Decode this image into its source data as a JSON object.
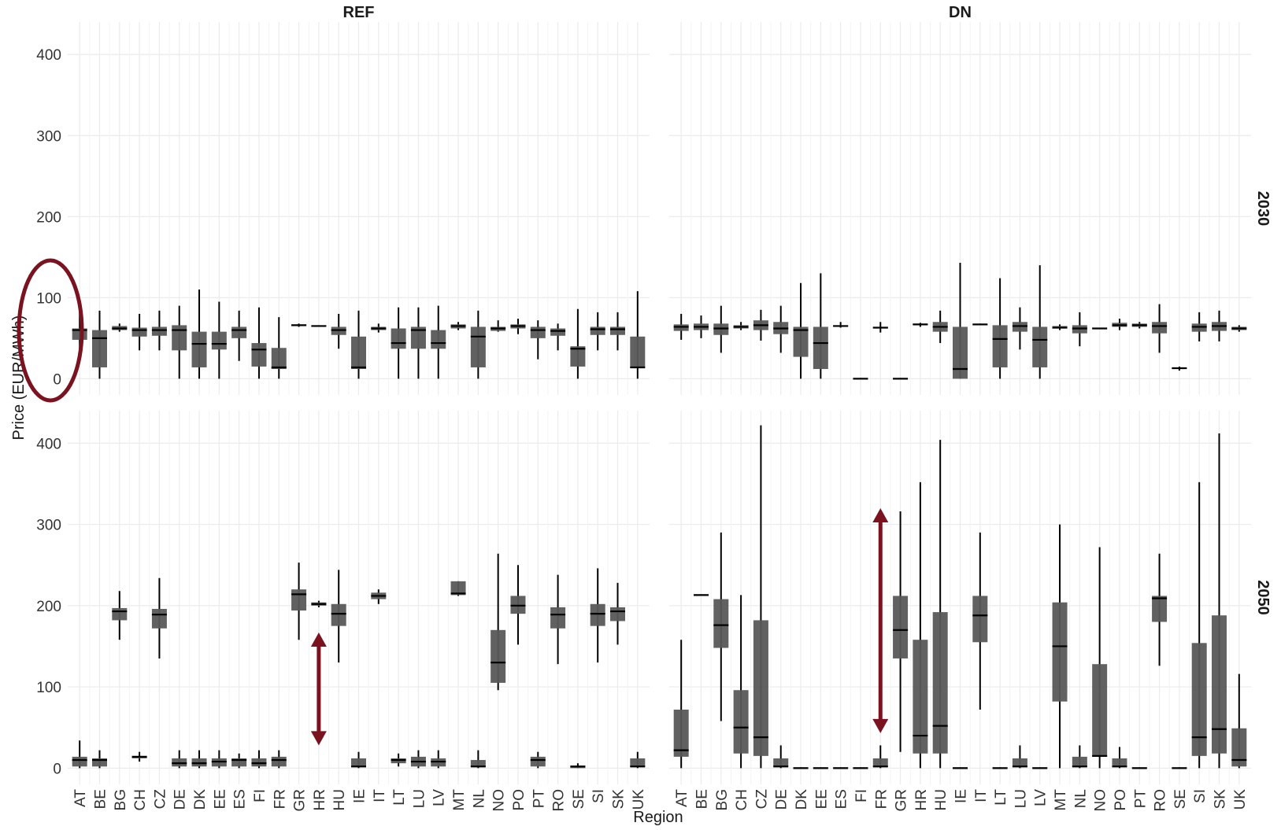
{
  "chart_data": {
    "type": "boxplot",
    "x_axis_label": "Region",
    "y_axis_label": "Price (EUR/MWh)",
    "columns": [
      "REF",
      "DN"
    ],
    "rows": [
      "2030",
      "2050"
    ],
    "y_range": [
      -20,
      440
    ],
    "y_ticks": [
      0,
      100,
      200,
      300,
      400
    ],
    "grid": true,
    "colors": {
      "box": "#595959",
      "line": "#000000",
      "grid": "#ebebeb",
      "annotation": "#7a1220"
    },
    "panels": [
      {
        "col": "REF",
        "row": "2030",
        "categories": [
          "AT",
          "BE",
          "BG",
          "CH",
          "CZ",
          "DE",
          "DK",
          "EE",
          "ES",
          "FI",
          "FR",
          "GR",
          "HR",
          "HU",
          "IE",
          "IT",
          "LT",
          "LU",
          "LV",
          "MT",
          "NL",
          "NO",
          "PO",
          "PT",
          "RO",
          "SE",
          "SI",
          "SK",
          "UK"
        ],
        "boxes": [
          [
            26,
            48,
            60,
            62,
            84
          ],
          [
            0,
            14,
            50,
            60,
            84
          ],
          [
            58,
            60,
            62,
            65,
            68
          ],
          [
            35,
            52,
            60,
            63,
            80
          ],
          [
            35,
            53,
            60,
            64,
            84
          ],
          [
            0,
            35,
            60,
            66,
            90
          ],
          [
            0,
            14,
            43,
            58,
            110
          ],
          [
            0,
            36,
            43,
            58,
            95
          ],
          [
            22,
            50,
            60,
            64,
            84
          ],
          [
            0,
            15,
            36,
            44,
            88
          ],
          [
            0,
            12,
            14,
            38,
            76
          ],
          [
            64,
            65,
            66,
            67,
            68
          ],
          [
            64,
            65,
            65,
            66,
            66
          ],
          [
            37,
            54,
            60,
            64,
            80
          ],
          [
            0,
            12,
            14,
            52,
            84
          ],
          [
            57,
            60,
            62,
            64,
            68
          ],
          [
            0,
            37,
            44,
            62,
            88
          ],
          [
            0,
            37,
            60,
            64,
            88
          ],
          [
            0,
            37,
            44,
            60,
            90
          ],
          [
            60,
            62,
            65,
            67,
            70
          ],
          [
            0,
            14,
            52,
            64,
            84
          ],
          [
            58,
            59,
            62,
            64,
            72
          ],
          [
            55,
            62,
            65,
            67,
            74
          ],
          [
            24,
            50,
            60,
            64,
            72
          ],
          [
            35,
            53,
            59,
            62,
            68
          ],
          [
            0,
            15,
            37,
            40,
            86
          ],
          [
            35,
            54,
            61,
            64,
            82
          ],
          [
            35,
            54,
            61,
            64,
            82
          ],
          [
            0,
            14,
            14,
            52,
            108
          ]
        ]
      },
      {
        "col": "DN",
        "row": "2030",
        "categories": [
          "AT",
          "BE",
          "BG",
          "CH",
          "CZ",
          "DE",
          "DK",
          "EE",
          "ES",
          "FI",
          "FR",
          "GR",
          "HR",
          "HU",
          "IE",
          "IT",
          "LT",
          "LU",
          "LV",
          "MT",
          "NL",
          "NO",
          "PO",
          "PT",
          "RO",
          "SE",
          "SI",
          "SK",
          "UK"
        ],
        "boxes": [
          [
            48,
            59,
            64,
            67,
            80
          ],
          [
            50,
            60,
            64,
            68,
            78
          ],
          [
            32,
            54,
            62,
            68,
            90
          ],
          [
            60,
            62,
            64,
            66,
            70
          ],
          [
            47,
            60,
            66,
            72,
            85
          ],
          [
            32,
            55,
            62,
            70,
            90
          ],
          [
            0,
            27,
            60,
            64,
            118
          ],
          [
            0,
            12,
            44,
            64,
            130
          ],
          [
            63,
            64,
            65,
            66,
            70
          ],
          [
            0,
            0,
            0,
            0,
            1
          ],
          [
            57,
            62,
            63,
            64,
            70
          ],
          [
            0,
            0,
            0,
            0,
            1
          ],
          [
            64,
            66,
            67,
            68,
            69
          ],
          [
            44,
            58,
            64,
            70,
            84
          ],
          [
            0,
            0,
            12,
            64,
            143
          ],
          [
            66,
            66,
            67,
            67,
            68
          ],
          [
            0,
            14,
            49,
            66,
            124
          ],
          [
            36,
            58,
            65,
            70,
            88
          ],
          [
            0,
            14,
            48,
            64,
            140
          ],
          [
            60,
            62,
            63,
            65,
            67
          ],
          [
            40,
            56,
            62,
            66,
            82
          ],
          [
            61,
            62,
            62,
            63,
            63
          ],
          [
            60,
            64,
            66,
            69,
            74
          ],
          [
            62,
            64,
            66,
            68,
            70
          ],
          [
            32,
            56,
            65,
            70,
            92
          ],
          [
            10,
            12,
            13,
            14,
            15
          ],
          [
            46,
            58,
            64,
            68,
            82
          ],
          [
            46,
            59,
            65,
            70,
            84
          ],
          [
            58,
            60,
            62,
            64,
            66
          ]
        ]
      },
      {
        "col": "REF",
        "row": "2050",
        "categories": [
          "AT",
          "BE",
          "BG",
          "CH",
          "CZ",
          "DE",
          "DK",
          "EE",
          "ES",
          "FI",
          "FR",
          "GR",
          "HR",
          "HU",
          "IE",
          "IT",
          "LT",
          "LU",
          "LV",
          "MT",
          "NL",
          "NO",
          "PO",
          "PT",
          "RO",
          "SE",
          "SI",
          "SK",
          "UK"
        ],
        "boxes": [
          [
            0,
            2,
            10,
            14,
            34
          ],
          [
            0,
            2,
            10,
            12,
            22
          ],
          [
            158,
            182,
            193,
            197,
            218
          ],
          [
            8,
            12,
            14,
            14,
            20
          ],
          [
            135,
            172,
            189,
            196,
            234
          ],
          [
            0,
            2,
            6,
            12,
            22
          ],
          [
            0,
            2,
            6,
            12,
            22
          ],
          [
            0,
            2,
            8,
            12,
            22
          ],
          [
            0,
            2,
            10,
            12,
            18
          ],
          [
            0,
            2,
            6,
            12,
            22
          ],
          [
            0,
            2,
            10,
            14,
            22
          ],
          [
            158,
            194,
            214,
            220,
            253
          ],
          [
            198,
            200,
            202,
            204,
            206
          ],
          [
            130,
            175,
            190,
            202,
            244
          ],
          [
            0,
            2,
            2,
            12,
            20
          ],
          [
            202,
            208,
            212,
            216,
            220
          ],
          [
            2,
            6,
            10,
            12,
            18
          ],
          [
            0,
            2,
            8,
            14,
            22
          ],
          [
            0,
            2,
            8,
            12,
            22
          ],
          [
            212,
            213,
            215,
            230,
            230
          ],
          [
            0,
            2,
            2,
            10,
            22
          ],
          [
            96,
            105,
            130,
            170,
            264
          ],
          [
            152,
            190,
            200,
            212,
            250
          ],
          [
            0,
            2,
            10,
            14,
            20
          ],
          [
            128,
            172,
            189,
            198,
            238
          ],
          [
            0,
            0,
            2,
            3,
            6
          ],
          [
            130,
            175,
            190,
            202,
            246
          ],
          [
            152,
            181,
            193,
            198,
            228
          ],
          [
            0,
            2,
            2,
            12,
            20
          ]
        ]
      },
      {
        "col": "DN",
        "row": "2050",
        "categories": [
          "AT",
          "BE",
          "BG",
          "CH",
          "CZ",
          "DE",
          "DK",
          "EE",
          "ES",
          "FI",
          "FR",
          "GR",
          "HR",
          "HU",
          "IE",
          "IT",
          "LT",
          "LU",
          "LV",
          "MT",
          "NL",
          "NO",
          "PO",
          "PT",
          "RO",
          "SE",
          "SI",
          "SK",
          "UK"
        ],
        "boxes": [
          [
            0,
            14,
            22,
            72,
            158
          ],
          [
            212,
            212,
            213,
            214,
            214
          ],
          [
            58,
            148,
            176,
            208,
            290
          ],
          [
            0,
            18,
            50,
            96,
            213
          ],
          [
            0,
            15,
            38,
            182,
            422
          ],
          [
            0,
            2,
            2,
            12,
            28
          ],
          [
            0,
            0,
            0,
            1,
            1
          ],
          [
            0,
            0,
            0,
            1,
            1
          ],
          [
            0,
            0,
            0,
            1,
            1
          ],
          [
            0,
            0,
            0,
            1,
            1
          ],
          [
            0,
            2,
            2,
            12,
            28
          ],
          [
            20,
            135,
            170,
            212,
            316
          ],
          [
            0,
            18,
            40,
            158,
            352
          ],
          [
            0,
            18,
            52,
            192,
            404
          ],
          [
            0,
            0,
            0,
            1,
            1
          ],
          [
            72,
            155,
            188,
            212,
            290
          ],
          [
            0,
            0,
            0,
            1,
            1
          ],
          [
            0,
            2,
            2,
            12,
            28
          ],
          [
            0,
            0,
            0,
            1,
            1
          ],
          [
            0,
            82,
            150,
            204,
            300
          ],
          [
            0,
            2,
            2,
            14,
            28
          ],
          [
            0,
            14,
            15,
            128,
            272
          ],
          [
            0,
            2,
            2,
            12,
            26
          ],
          [
            0,
            0,
            0,
            1,
            1
          ],
          [
            126,
            180,
            209,
            212,
            264
          ],
          [
            0,
            0,
            0,
            1,
            1
          ],
          [
            0,
            15,
            38,
            154,
            352
          ],
          [
            0,
            18,
            48,
            188,
            412
          ],
          [
            0,
            2,
            10,
            49,
            116
          ]
        ]
      }
    ],
    "annotations": [
      {
        "type": "ellipse",
        "panel": "REF-2030",
        "around": "y-axis labels 0–100"
      },
      {
        "type": "double-arrow",
        "panel": "REF-2050",
        "x": "HR",
        "y": [
          30,
          165
        ]
      },
      {
        "type": "double-arrow",
        "panel": "DN-2050",
        "x": "FR",
        "y": [
          45,
          318
        ]
      }
    ]
  }
}
